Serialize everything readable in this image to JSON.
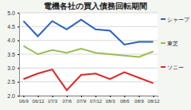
{
  "chart_data": {
    "type": "line",
    "title": "電機各社の買入債務回転期間",
    "categories": [
      "06/9",
      "06/12",
      "07/3",
      "07/6",
      "07/9",
      "07/12",
      "08/3",
      "08/6",
      "08/9",
      "08/12"
    ],
    "series": [
      {
        "name": "シャープ",
        "color": "#2a5fc0",
        "values": [
          4.7,
          4.15,
          4.7,
          4.4,
          4.75,
          4.4,
          4.35,
          3.85,
          3.95,
          3.95
        ]
      },
      {
        "name": "東芝",
        "color": "#9bbd55",
        "values": [
          3.8,
          3.5,
          3.65,
          3.55,
          3.7,
          3.55,
          3.5,
          3.45,
          3.4,
          3.6
        ]
      },
      {
        "name": "ソニー",
        "color": "#e02525",
        "values": [
          2.6,
          2.8,
          2.95,
          2.2,
          2.75,
          2.8,
          2.6,
          2.85,
          2.65,
          2.45
        ]
      }
    ],
    "ylim": [
      2,
      5
    ],
    "yticks": [
      {
        "value": 2,
        "label": "2.0"
      },
      2.5,
      {
        "value": 3,
        "label": "3.0"
      },
      3.5,
      {
        "value": 4,
        "label": "4.0"
      },
      4.5,
      {
        "value": 5,
        "label": "5.0"
      }
    ],
    "grid": true,
    "legend": "right"
  }
}
